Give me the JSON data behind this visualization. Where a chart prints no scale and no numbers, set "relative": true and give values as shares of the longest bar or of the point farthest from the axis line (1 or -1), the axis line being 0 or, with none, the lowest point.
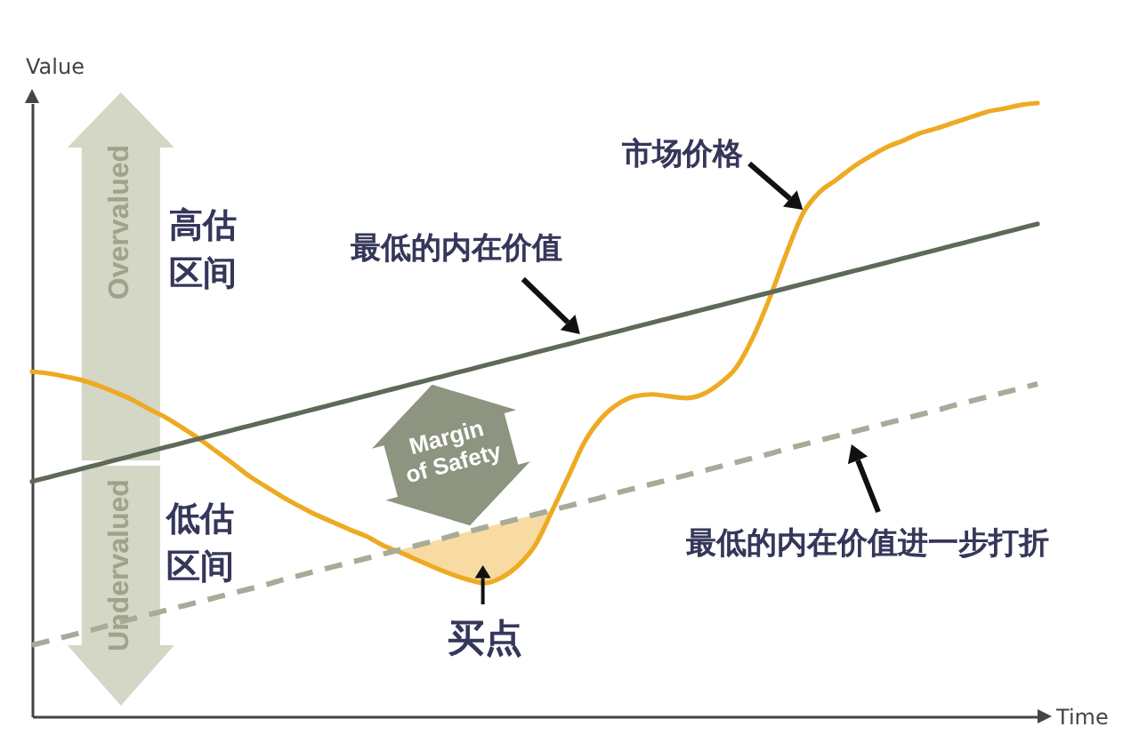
{
  "chart_data": {
    "type": "line",
    "relative": true,
    "xlabel": "Time",
    "ylabel": "Value",
    "categories": [
      null,
      null,
      null,
      null,
      null,
      null,
      null,
      null,
      null,
      null,
      null,
      null,
      null,
      null,
      null,
      null,
      null,
      null,
      null,
      null,
      null,
      null,
      null,
      null,
      null,
      null,
      null,
      null,
      null,
      null,
      null,
      null,
      null,
      null,
      null,
      null,
      null,
      null,
      null,
      null,
      null,
      null,
      null,
      null,
      null,
      null,
      null,
      null,
      null,
      null,
      null,
      null,
      null,
      null,
      null,
      null,
      null,
      null,
      null,
      null,
      null
    ],
    "series": [
      {
        "name": "市场价格",
        "color": "#eeaa22",
        "values": [
          0.562,
          0.559,
          0.554,
          0.548,
          0.539,
          0.528,
          0.516,
          0.501,
          0.487,
          0.47,
          0.452,
          0.432,
          0.412,
          0.391,
          0.374,
          0.357,
          0.342,
          0.328,
          0.316,
          0.304,
          0.293,
          0.278,
          0.267,
          0.255,
          0.243,
          0.232,
          0.223,
          0.217,
          0.226,
          0.246,
          0.278,
          0.333,
          0.391,
          0.449,
          0.487,
          0.51,
          0.522,
          0.525,
          0.522,
          0.519,
          0.525,
          0.542,
          0.568,
          0.617,
          0.681,
          0.754,
          0.82,
          0.855,
          0.875,
          0.896,
          0.913,
          0.928,
          0.939,
          0.951,
          0.959,
          0.968,
          0.977,
          0.986,
          0.991,
          0.997,
          1.0
        ],
        "lower": [
          null,
          null,
          null,
          null,
          null,
          null,
          null,
          null,
          null,
          null,
          null,
          null,
          null,
          null,
          null,
          null,
          null,
          null,
          null,
          null,
          null,
          null,
          0.267,
          0.255,
          0.243,
          0.232,
          0.223,
          0.217,
          0.226,
          0.246,
          0.278,
          0.333,
          null,
          null,
          null,
          null,
          null,
          null,
          null,
          null,
          null,
          null,
          null,
          null,
          null,
          null,
          null,
          null,
          null,
          null,
          null,
          null,
          null,
          null,
          null,
          null,
          null,
          null,
          null,
          null,
          null
        ],
        "upper": [
          null,
          null,
          null,
          null,
          null,
          null,
          null,
          null,
          null,
          null,
          null,
          null,
          null,
          null,
          null,
          null,
          null,
          null,
          null,
          null,
          null,
          null,
          0.272,
          0.279,
          0.286,
          0.294,
          0.301,
          0.308,
          0.315,
          0.322,
          0.329,
          0.336,
          null,
          null,
          null,
          null,
          null,
          null,
          null,
          null,
          null,
          null,
          null,
          null,
          null,
          null,
          null,
          null,
          null,
          null,
          null,
          null,
          null,
          null,
          null,
          null,
          null,
          null,
          null,
          null,
          null
        ]
      },
      {
        "name": "最低的内在价值",
        "color": "#5e6a57",
        "values": [
          0.383,
          0.39,
          0.397,
          0.404,
          0.411,
          0.418,
          0.425,
          0.432,
          0.439,
          0.446,
          0.453,
          0.46,
          0.467,
          0.474,
          0.481,
          0.488,
          0.495,
          0.502,
          0.509,
          0.516,
          0.523,
          0.53,
          0.537,
          0.544,
          0.551,
          0.558,
          0.565,
          0.572,
          0.579,
          0.586,
          0.593,
          0.6,
          0.607,
          0.614,
          0.621,
          0.628,
          0.635,
          0.642,
          0.649,
          0.656,
          0.663,
          0.67,
          0.677,
          0.684,
          0.691,
          0.698,
          0.705,
          0.712,
          0.719,
          0.726,
          0.733,
          0.74,
          0.747,
          0.754,
          0.761,
          0.768,
          0.775,
          0.782,
          0.789,
          0.796,
          0.803
        ]
      },
      {
        "name": "最低的内在价值进一步打折",
        "color": "#a7ab98",
        "line_style": "dashed",
        "values": [
          0.116,
          0.123,
          0.13,
          0.137,
          0.144,
          0.152,
          0.159,
          0.166,
          0.173,
          0.18,
          0.187,
          0.194,
          0.201,
          0.208,
          0.215,
          0.223,
          0.23,
          0.237,
          0.244,
          0.251,
          0.258,
          0.265,
          0.272,
          0.279,
          0.286,
          0.294,
          0.301,
          0.308,
          0.315,
          0.322,
          0.329,
          0.336,
          0.343,
          0.35,
          0.357,
          0.365,
          0.372,
          0.379,
          0.386,
          0.393,
          0.4,
          0.407,
          0.414,
          0.421,
          0.428,
          0.436,
          0.443,
          0.45,
          0.457,
          0.464,
          0.471,
          0.478,
          0.485,
          0.492,
          0.499,
          0.507,
          0.514,
          0.521,
          0.528,
          0.535,
          0.542
        ]
      }
    ],
    "annotations": [
      "高估区间",
      "低估区间",
      "买点",
      "Overvalued",
      "Undervalued",
      "Margin of Safety"
    ]
  }
}
